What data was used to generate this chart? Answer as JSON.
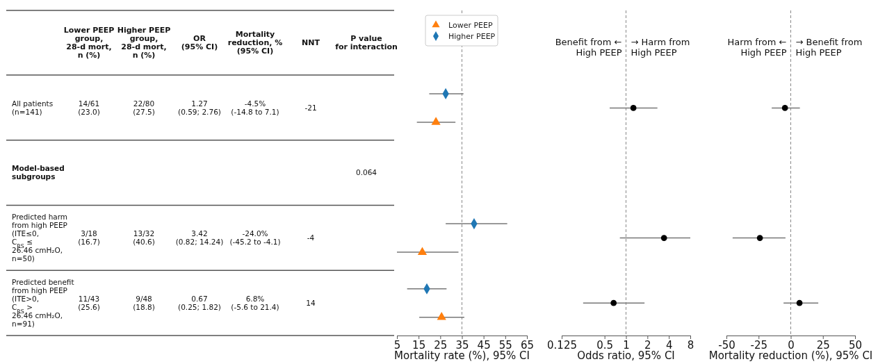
{
  "chart_data": [
    {
      "type": "other",
      "categories": [
        null,
        "Lower PEEP\ngroup,\n28-d mort,\nn (%)",
        "Higher PEEP\ngroup,\n28-d mort,\nn (%)",
        "OR\n(95% CI)",
        "Mortality\nreduction, %\n(95% CI)",
        "NNT",
        "P value\nfor interaction"
      ],
      "y_categories": [
        "All patients\n(n=141)",
        "Model-based\nsubgroups",
        "Predicted harm\nfrom high PEEP\n(ITE≤0,\nC$_{RS}$ ≤\n26.46 cmH₂O,\nn=50)",
        "Predicted benefit\nfrom high PEEP\n(ITE>0,\nC$_{RS}$ >\n26.46 cmH₂O,\nn=91)"
      ],
      "cell_labels": [
        [
          "14/61\n(23.0)",
          "22/80\n(27.5)",
          "1.27\n(0.59; 2.76)",
          "-4.5%\n(-14.8 to 7.1)",
          "-21",
          null
        ],
        [
          null,
          null,
          null,
          null,
          null,
          "0.064"
        ],
        [
          "3/18\n(16.7)",
          "13/32\n(40.6)",
          "3.42\n(0.82; 14.24)",
          "-24.0%\n(-45.2 to -4.1)",
          "-4",
          null
        ],
        [
          "11/43\n(25.6)",
          "9/48\n(18.8)",
          "0.67\n(0.25; 1.82)",
          "6.8%\n(-5.6 to 21.4)",
          "14",
          null
        ]
      ]
    },
    {
      "type": "scatter",
      "orientation": "horizontal",
      "categories": [
        null,
        null,
        null,
        null,
        null
      ],
      "xlabel": "Mortality rate (%), 95% CI",
      "xlim": [
        5,
        65
      ],
      "xticks": [
        5,
        15,
        25,
        35,
        45,
        55,
        65
      ],
      "tick_labels": "x",
      "legend": "top",
      "ref_lines": [
        {
          "axis": "x",
          "value": 35,
          "color": "#888888",
          "line_style": "dashed"
        }
      ],
      "series": [
        {
          "name": "Lower PEEP",
          "color": "#ff7f0e",
          "marker": "triangle",
          "values": [
            null,
            23.0,
            null,
            16.7,
            25.6
          ],
          "errors": [
            null,
            [
              14.2,
              32.0
            ],
            null,
            [
              5.0,
              33.4
            ],
            [
              15.3,
              36.1
            ]
          ]
        },
        {
          "name": "Higher PEEP",
          "color": "#1f77b4",
          "marker": "diamond",
          "values": [
            null,
            27.5,
            null,
            40.6,
            18.8
          ],
          "errors": [
            null,
            [
              19.9,
              35.7
            ],
            null,
            [
              27.5,
              55.9
            ],
            [
              9.7,
              27.9
            ]
          ]
        }
      ]
    },
    {
      "type": "scatter",
      "orientation": "horizontal",
      "categories": [
        null,
        null,
        null,
        null,
        null
      ],
      "xlabel": "Odds ratio, 95% CI",
      "log": "x",
      "xlim": [
        0.125,
        8
      ],
      "xticks": [
        0.125,
        0.5,
        1,
        2,
        4,
        8
      ],
      "tick_labels": "x",
      "marker": "circle",
      "annotations": [
        "Benefit from ←\nHigh PEEP",
        "→ Harm from\nHigh PEEP"
      ],
      "ref_lines": [
        {
          "axis": "x",
          "value": 1,
          "color": "#888888",
          "line_style": "dashed"
        }
      ],
      "series": [
        {
          "color": "#000000",
          "values": [
            null,
            1.27,
            null,
            3.42,
            0.67
          ],
          "errors": [
            null,
            [
              0.59,
              2.76
            ],
            null,
            [
              0.82,
              8
            ],
            [
              0.25,
              1.82
            ]
          ]
        }
      ]
    },
    {
      "type": "scatter",
      "orientation": "horizontal",
      "categories": [
        null,
        null,
        null,
        null,
        null
      ],
      "xlabel": "Mortality reduction (%), 95% CI",
      "xlim": [
        -50,
        50
      ],
      "xticks": [
        -50,
        -25,
        0,
        25,
        50
      ],
      "tick_labels": "x",
      "marker": "circle",
      "annotations": [
        "Harm from ←\nHigh PEEP",
        "→ Benefit from\nHigh PEEP"
      ],
      "ref_lines": [
        {
          "axis": "x",
          "value": 0,
          "color": "#888888",
          "line_style": "dashed"
        }
      ],
      "series": [
        {
          "color": "#000000",
          "values": [
            null,
            -4.5,
            null,
            -24.0,
            6.8
          ],
          "errors": [
            null,
            [
              -14.8,
              7.1
            ],
            null,
            [
              -45.2,
              -4.1
            ],
            [
              -5.6,
              21.4
            ]
          ]
        }
      ]
    }
  ]
}
